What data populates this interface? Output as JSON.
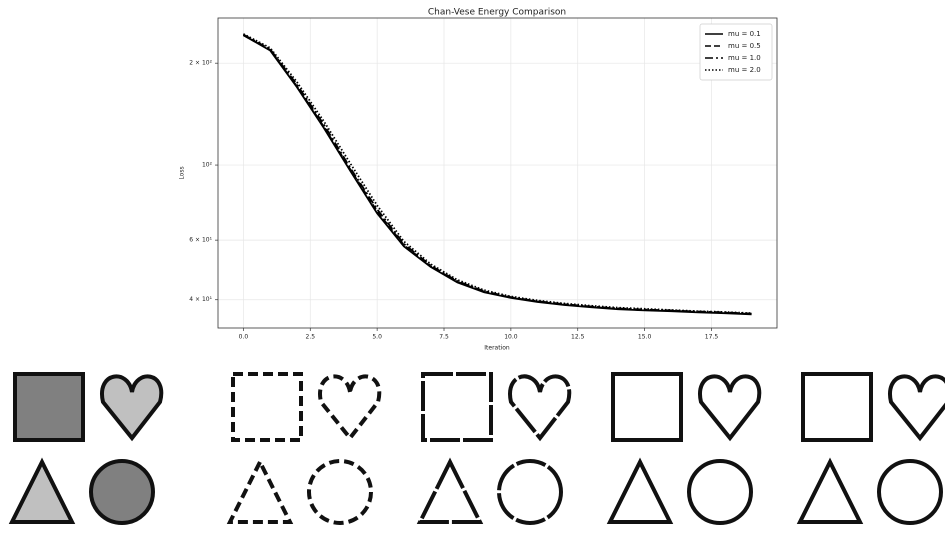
{
  "chart_data": {
    "type": "line",
    "title": "Chan-Vese Energy Comparison",
    "xlabel": "Iteration",
    "ylabel": "Loss",
    "x": [
      0,
      1,
      2,
      3,
      4,
      5,
      6,
      7,
      8,
      9,
      10,
      11,
      12,
      13,
      14,
      15,
      16,
      17,
      18,
      19
    ],
    "series": [
      {
        "name": "mu = 0.1",
        "color": "#000000",
        "linestyle": "solid",
        "values": [
          242,
          218,
          170,
          129,
          96,
          72,
          57.5,
          50,
          45,
          42.1,
          40.5,
          39.4,
          38.6,
          38,
          37.5,
          37.2,
          37,
          36.7,
          36.5,
          36.2
        ]
      },
      {
        "name": "mu = 0.5",
        "color": "#000000",
        "linestyle": "dashed",
        "values": [
          242,
          219,
          171,
          130,
          97,
          73,
          58,
          50.2,
          45.2,
          42.2,
          40.6,
          39.5,
          38.7,
          38.1,
          37.6,
          37.3,
          37.1,
          36.8,
          36.6,
          36.3
        ]
      },
      {
        "name": "mu = 1.0",
        "color": "#000000",
        "linestyle": "dashdot",
        "values": [
          243,
          220,
          173,
          132,
          98,
          74,
          58.5,
          50.5,
          45.4,
          42.4,
          40.7,
          39.6,
          38.8,
          38.2,
          37.7,
          37.4,
          37.2,
          36.9,
          36.7,
          36.4
        ]
      },
      {
        "name": "mu = 2.0",
        "color": "#000000",
        "linestyle": "dotted",
        "values": [
          244,
          222,
          176,
          135,
          101,
          76,
          59.5,
          51,
          45.8,
          42.7,
          40.9,
          39.8,
          39,
          38.4,
          37.9,
          37.6,
          37.3,
          37,
          36.8,
          36.5
        ]
      }
    ],
    "xlim": [
      -0.95,
      19.95
    ],
    "xticks": [
      {
        "value": 0,
        "label": "0.0"
      },
      {
        "value": 2.5,
        "label": "2.5"
      },
      {
        "value": 5,
        "label": "5.0"
      },
      {
        "value": 7.5,
        "label": "7.5"
      },
      {
        "value": 10,
        "label": "10.0"
      },
      {
        "value": 12.5,
        "label": "12.5"
      },
      {
        "value": 15,
        "label": "15.0"
      },
      {
        "value": 17.5,
        "label": "17.5"
      }
    ],
    "ylim": [
      33,
      272
    ],
    "yscale": "log",
    "yticks": [
      {
        "value": 40,
        "label": "4 × 10¹"
      },
      {
        "value": 60,
        "label": "6 × 10¹"
      },
      {
        "value": 100,
        "label": "10²"
      },
      {
        "value": 200,
        "label": "2 × 10²"
      }
    ],
    "grid": true,
    "legend": "upper right"
  }
}
